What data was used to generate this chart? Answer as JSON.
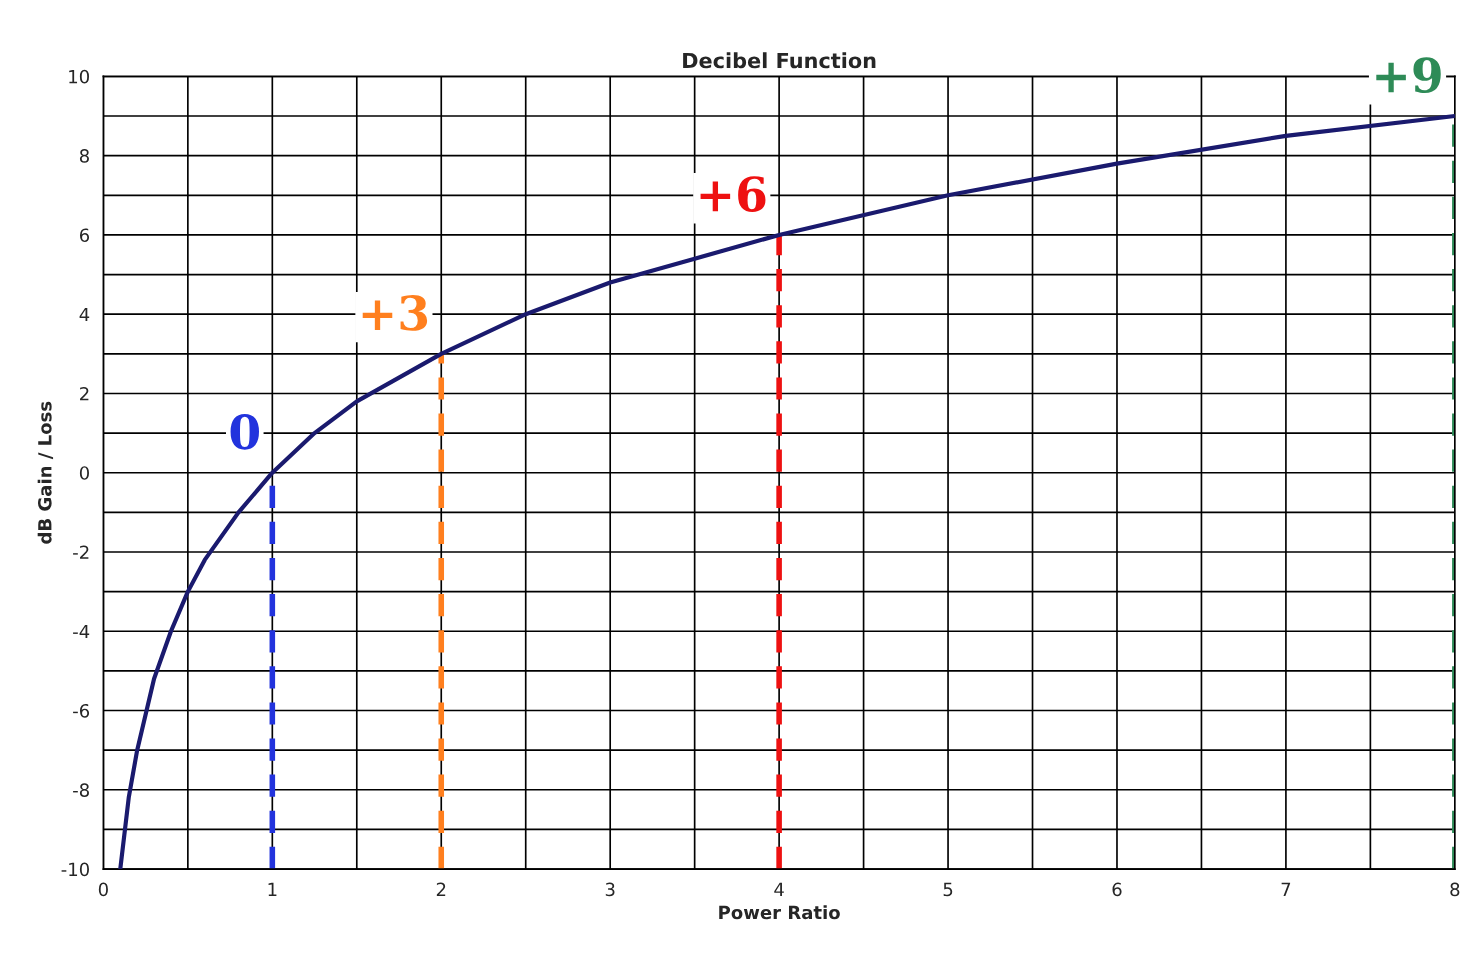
{
  "chart_data": {
    "type": "line",
    "title": "Decibel Function",
    "xlabel": "Power Ratio",
    "ylabel": "dB Gain / Loss",
    "x": [
      0.1,
      0.15,
      0.2,
      0.3,
      0.4,
      0.5,
      0.6,
      0.8,
      1,
      1.25,
      1.5,
      2,
      2.5,
      3,
      3.5,
      4,
      5,
      6,
      7,
      8
    ],
    "series": [
      {
        "color": "#1a1a6e",
        "values": [
          -10,
          -8.2,
          -7,
          -5.2,
          -4,
          -3,
          -2.2,
          -1,
          0,
          1,
          1.8,
          3,
          4,
          4.8,
          5.4,
          6,
          7,
          7.8,
          8.5,
          9
        ]
      }
    ],
    "xlim": [
      0,
      8
    ],
    "ylim": [
      -10,
      10
    ],
    "xticks": [
      0,
      {
        "value": 0.5,
        "label": null
      },
      1,
      {
        "value": 1.5,
        "label": null
      },
      2,
      {
        "value": 2.5,
        "label": null
      },
      3,
      {
        "value": 3.5,
        "label": null
      },
      4,
      {
        "value": 4.5,
        "label": null
      },
      5,
      {
        "value": 5.5,
        "label": null
      },
      6,
      {
        "value": 6.5,
        "label": null
      },
      7,
      {
        "value": 7.5,
        "label": null
      },
      8
    ],
    "yticks": [
      -10,
      {
        "value": -9,
        "label": null
      },
      -8,
      {
        "value": -7,
        "label": null
      },
      -6,
      {
        "value": -5,
        "label": null
      },
      -4,
      {
        "value": -3,
        "label": null
      },
      -2,
      {
        "value": -1,
        "label": null
      },
      0,
      {
        "value": 1,
        "label": null
      },
      2,
      {
        "value": 3,
        "label": null
      },
      4,
      {
        "value": 5,
        "label": null
      },
      6,
      {
        "value": 7,
        "label": null
      },
      8,
      {
        "value": 9,
        "label": null
      },
      10
    ],
    "ref_lines": [
      {
        "axis": "x",
        "value": 1,
        "color": "#2233dd",
        "line_style": "dashed"
      },
      {
        "axis": "x",
        "value": 2,
        "color": "#ff7f1e",
        "line_style": "dashed"
      },
      {
        "axis": "x",
        "value": 4,
        "color": "#ee1111",
        "line_style": "dashed"
      },
      {
        "axis": "x",
        "value": 8,
        "color": "#2e8b57",
        "line_style": "dashed"
      }
    ],
    "annotations": [
      {
        "text": "0",
        "x": 1,
        "y": 0
      },
      {
        "text": "+3",
        "x": 2,
        "y": 3
      },
      {
        "text": "+6",
        "x": 4,
        "y": 6
      },
      {
        "text": "+9",
        "x": 8,
        "y": 9
      }
    ],
    "grid": true,
    "line_style": "solid",
    "marker": "none"
  }
}
